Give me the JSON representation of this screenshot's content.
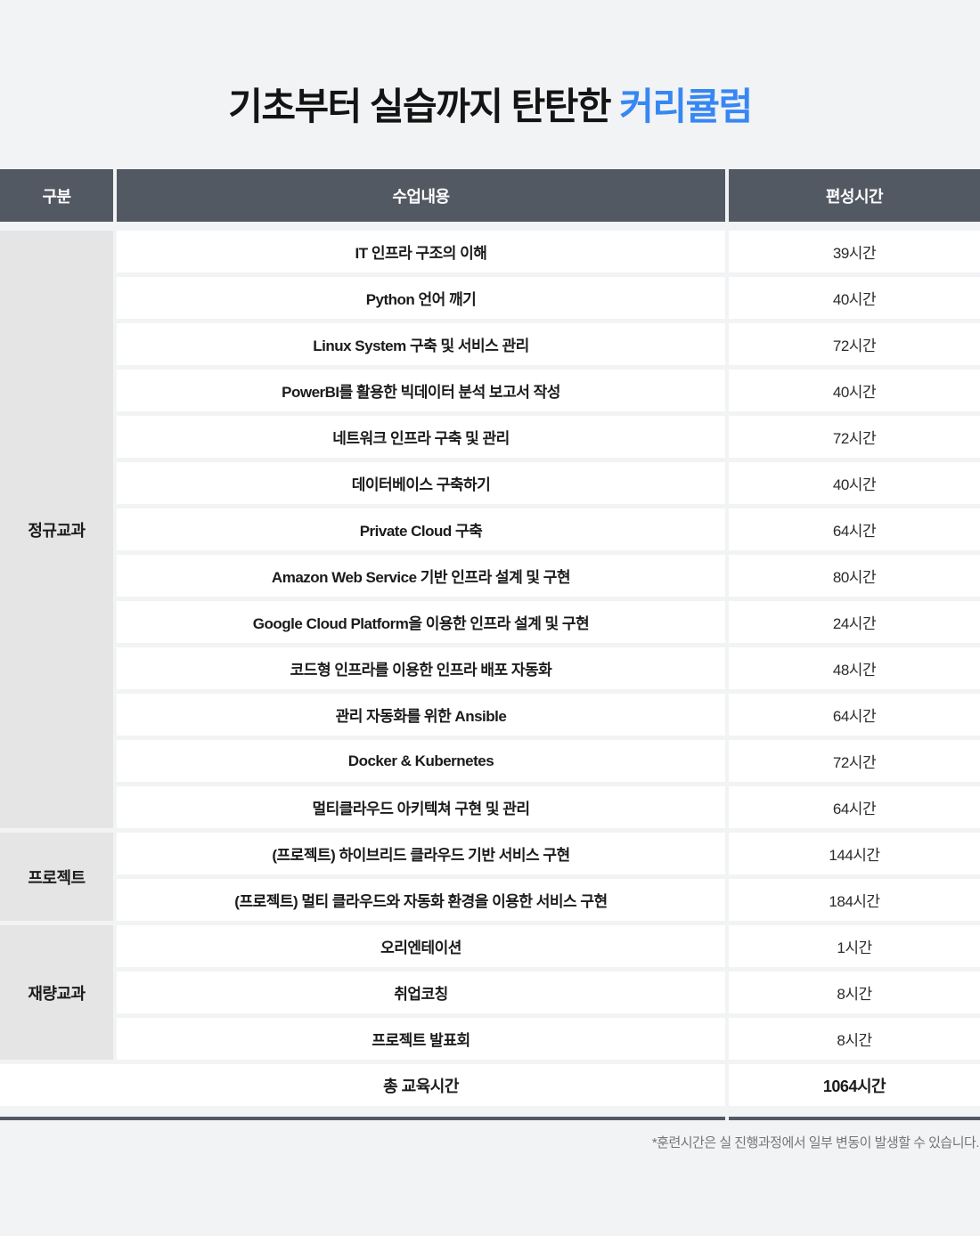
{
  "title": {
    "prefix": "기초부터 실습까지 탄탄한 ",
    "highlight": "커리큘럼"
  },
  "colors": {
    "accent_blue": "#3787F3",
    "header_dark": "#525963",
    "group_gray": "#E5E5E6",
    "page_bg": "#F2F3F5"
  },
  "table": {
    "headers": [
      "구분",
      "수업내용",
      "편성시간"
    ],
    "groups": [
      {
        "label": "정규교과",
        "rows": [
          {
            "content": "IT 인프라 구조의 이해",
            "hours": "39시간"
          },
          {
            "content": "Python 언어 깨기",
            "hours": "40시간"
          },
          {
            "content": "Linux System 구축 및 서비스 관리",
            "hours": "72시간"
          },
          {
            "content": "PowerBI를 활용한 빅데이터 분석 보고서 작성",
            "hours": "40시간"
          },
          {
            "content": "네트워크 인프라 구축 및 관리",
            "hours": "72시간"
          },
          {
            "content": "데이터베이스 구축하기",
            "hours": "40시간"
          },
          {
            "content": "Private Cloud 구축",
            "hours": "64시간"
          },
          {
            "content": "Amazon Web Service 기반 인프라 설계 및 구현",
            "hours": "80시간"
          },
          {
            "content": "Google Cloud Platform을 이용한 인프라 설계 및 구현",
            "hours": "24시간"
          },
          {
            "content": "코드형 인프라를 이용한 인프라 배포 자동화",
            "hours": "48시간"
          },
          {
            "content": "관리 자동화를 위한 Ansible",
            "hours": "64시간"
          },
          {
            "content": "Docker & Kubernetes",
            "hours": "72시간"
          },
          {
            "content": "멀티클라우드 아키텍쳐 구현 및 관리",
            "hours": "64시간"
          }
        ]
      },
      {
        "label": "프로젝트",
        "rows": [
          {
            "content": "(프로젝트) 하이브리드 클라우드 기반 서비스 구현",
            "hours": "144시간"
          },
          {
            "content": "(프로젝트) 멀티 클라우드와 자동화 환경을 이용한 서비스 구현",
            "hours": "184시간"
          }
        ]
      },
      {
        "label": "재량교과",
        "rows": [
          {
            "content": "오리엔테이션",
            "hours": "1시간"
          },
          {
            "content": "취업코칭",
            "hours": "8시간"
          },
          {
            "content": "프로젝트 발표회",
            "hours": "8시간"
          }
        ]
      }
    ],
    "total": {
      "label": "총 교육시간",
      "hours": "1064시간"
    }
  },
  "footnote": "*훈련시간은 실 진행과정에서 일부 변동이 발생할 수 있습니다."
}
